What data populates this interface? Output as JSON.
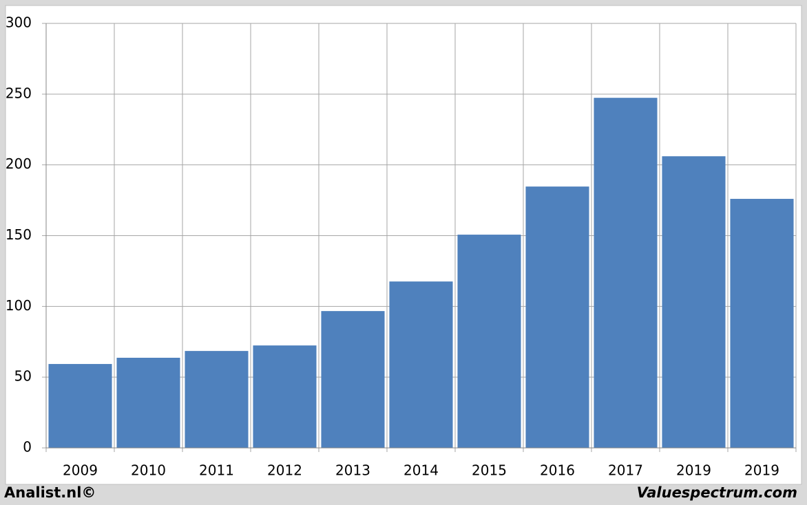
{
  "chart_data": {
    "type": "bar",
    "categories": [
      "2009",
      "2010",
      "2011",
      "2012",
      "2013",
      "2014",
      "2015",
      "2016",
      "2017",
      "2019",
      "2019"
    ],
    "values": [
      59.3,
      63.7,
      68.5,
      72.4,
      96.7,
      117.6,
      150.7,
      184.7,
      247.4,
      206.1,
      176
    ],
    "color": "#4f81bd",
    "ylim": [
      0,
      300
    ],
    "yticks": [
      0,
      50,
      100,
      150,
      200,
      250,
      300
    ],
    "grid": true,
    "source_left": "Analist.nl©",
    "source_right": "Valuespectrum.com"
  }
}
